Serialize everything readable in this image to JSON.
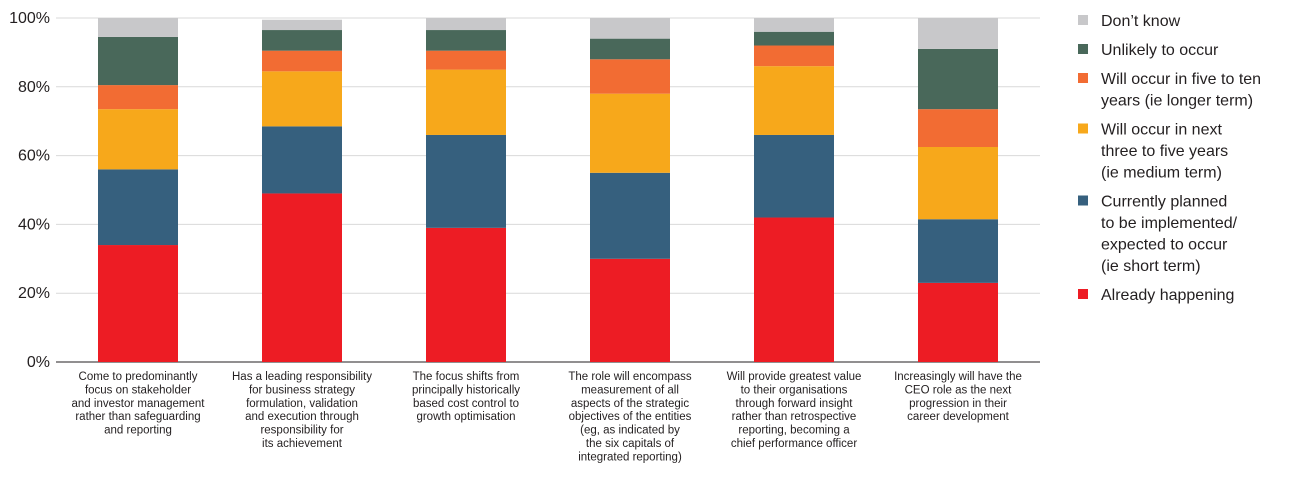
{
  "chart_data": {
    "type": "bar",
    "stacked": true,
    "title": "",
    "xlabel": "",
    "ylabel": "",
    "ylim": [
      0,
      100
    ],
    "y_ticks": [
      "0%",
      "20%",
      "40%",
      "60%",
      "80%",
      "100%"
    ],
    "grid": "horizontal",
    "legend_position": "right",
    "categories": [
      [
        "Come to predominantly",
        "focus on stakeholder",
        "and investor management",
        "rather than safeguarding",
        "and reporting"
      ],
      [
        "Has a leading responsibility",
        "for business strategy",
        "formulation, validation",
        "and execution through",
        "responsibility for",
        "its achievement"
      ],
      [
        "The focus shifts from",
        "principally historically",
        "based cost control to",
        "growth optimisation"
      ],
      [
        "The role will encompass",
        "measurement of all",
        "aspects of the strategic",
        "objectives of the entities",
        "(eg, as indicated by",
        "the six capitals of",
        "integrated reporting)"
      ],
      [
        "Will provide greatest value",
        "to their organisations",
        "through forward insight",
        "rather than retrospective",
        "reporting, becoming a",
        "chief performance officer"
      ],
      [
        "Increasingly will have the",
        "CEO role as the next",
        "progression in their",
        "career development"
      ]
    ],
    "series": [
      {
        "name": "Already happening",
        "color": "#ed1c24",
        "values": [
          34,
          49,
          39,
          30,
          42,
          23
        ]
      },
      {
        "name": "Currently planned to be implemented/ expected to occur (ie short term)",
        "color": "#36607e",
        "values": [
          22,
          19.5,
          27,
          25,
          24,
          18.5
        ]
      },
      {
        "name": "Will occur in next three to five years (ie medium term)",
        "color": "#f7a81b",
        "values": [
          17.5,
          16,
          19,
          23,
          20,
          21
        ]
      },
      {
        "name": "Will occur in five to ten years (ie longer term)",
        "color": "#f26c33",
        "values": [
          7,
          6,
          5.5,
          10,
          6,
          11
        ]
      },
      {
        "name": "Unlikely to occur",
        "color": "#49685a",
        "values": [
          14,
          6,
          6,
          6,
          4,
          17.5
        ]
      },
      {
        "name": "Don’t know",
        "color": "#c8c8ca",
        "values": [
          6,
          3,
          4,
          7,
          4,
          9
        ]
      }
    ],
    "legend": [
      {
        "lines": [
          "Don’t know"
        ],
        "color": "#c8c8ca"
      },
      {
        "lines": [
          "Unlikely to occur"
        ],
        "color": "#49685a"
      },
      {
        "lines": [
          "Will occur in five to ten",
          "years (ie longer term)"
        ],
        "color": "#f26c33"
      },
      {
        "lines": [
          "Will occur in next",
          "three to five years",
          "(ie medium term)"
        ],
        "color": "#f7a81b"
      },
      {
        "lines": [
          "Currently planned",
          "to be implemented/",
          "expected to occur",
          "(ie short term)"
        ],
        "color": "#36607e"
      },
      {
        "lines": [
          "Already happening"
        ],
        "color": "#ed1c24"
      }
    ]
  }
}
